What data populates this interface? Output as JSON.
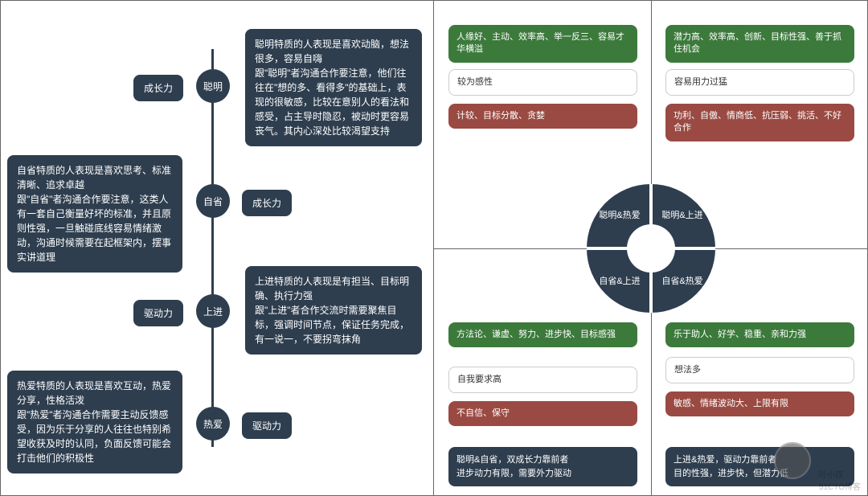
{
  "colors": {
    "dark": "#2e3e4f",
    "green": "#3c7a3c",
    "red": "#9a4a42",
    "white": "#ffffff",
    "border": "#666666"
  },
  "timeline": {
    "nodes": [
      {
        "dot": "聪明",
        "side": "成长力",
        "sideLeft": true,
        "desc": "聪明特质的人表现是喜欢动脑，想法很多，容易自嗨\n跟\"聪明\"者沟通合作要注意，他们往往在\"想的多、看得多\"的基础上，表现的很敏感，比较在意别人的看法和感受，占主导时隐忍，被动时更容易丧气。其内心深处比较渴望支持",
        "descRight": true
      },
      {
        "dot": "自省",
        "side": "成长力",
        "sideLeft": false,
        "desc": "自省特质的人表现是喜欢思考、标准清晰、追求卓越\n跟\"自省\"者沟通合作要注意，这类人有一套自己衡量好坏的标准，并且原则性强，一旦触碰底线容易情绪激动，沟通时候需要在起框架内，摆事实讲道理",
        "descRight": false
      },
      {
        "dot": "上进",
        "side": "驱动力",
        "sideLeft": true,
        "desc": "上进特质的人表现是有担当、目标明确、执行力强\n跟\"上进\"者合作交流时需要聚焦目标，强调时间节点，保证任务完成，有一说一，不要拐弯抹角",
        "descRight": true
      },
      {
        "dot": "热爱",
        "side": "驱动力",
        "sideLeft": false,
        "desc": "热爱特质的人表现是喜欢互动，热爱分享，性格活泼\n跟\"热爱\"者沟通合作需要主动反馈感受，因为乐于分享的人往往也特别希望收获及时的认同，负面反馈可能会打击他们的积极性",
        "descRight": false
      }
    ]
  },
  "ring": {
    "tl": "聪明&热爱",
    "tr": "聪明&上进",
    "bl": "自省&上进",
    "br": "自省&热爱"
  },
  "quadrants": {
    "tl": {
      "green": "人缘好、主动、效率高、举一反三、容易才华横溢",
      "white": "较为感性",
      "red": "计较、目标分散、贪婪"
    },
    "tr": {
      "green": "潜力高、效率高、创新、目标性强、善于抓住机会",
      "white": "容易用力过猛",
      "red": "功利、自傲、情商低、抗压弱、挑活、不好合作"
    },
    "bl": {
      "green": "方法论、谦虚、努力、进步快、目标感强",
      "white": "自我要求高",
      "red": "不自信、保守"
    },
    "br": {
      "green": "乐于助人、好学、稳重、亲和力强",
      "white": "想法多",
      "red": "敏感、情绪波动大、上限有限"
    }
  },
  "footers": {
    "left": "聪明&自省，双成长力靠前者\n进步动力有限，需要外力驱动",
    "right": "上进&热爱，驱动力靠前者\n目的性强，进步快，但潜力低"
  },
  "watermark": {
    "name": "叶小钗",
    "sub": "51CTO博客"
  }
}
